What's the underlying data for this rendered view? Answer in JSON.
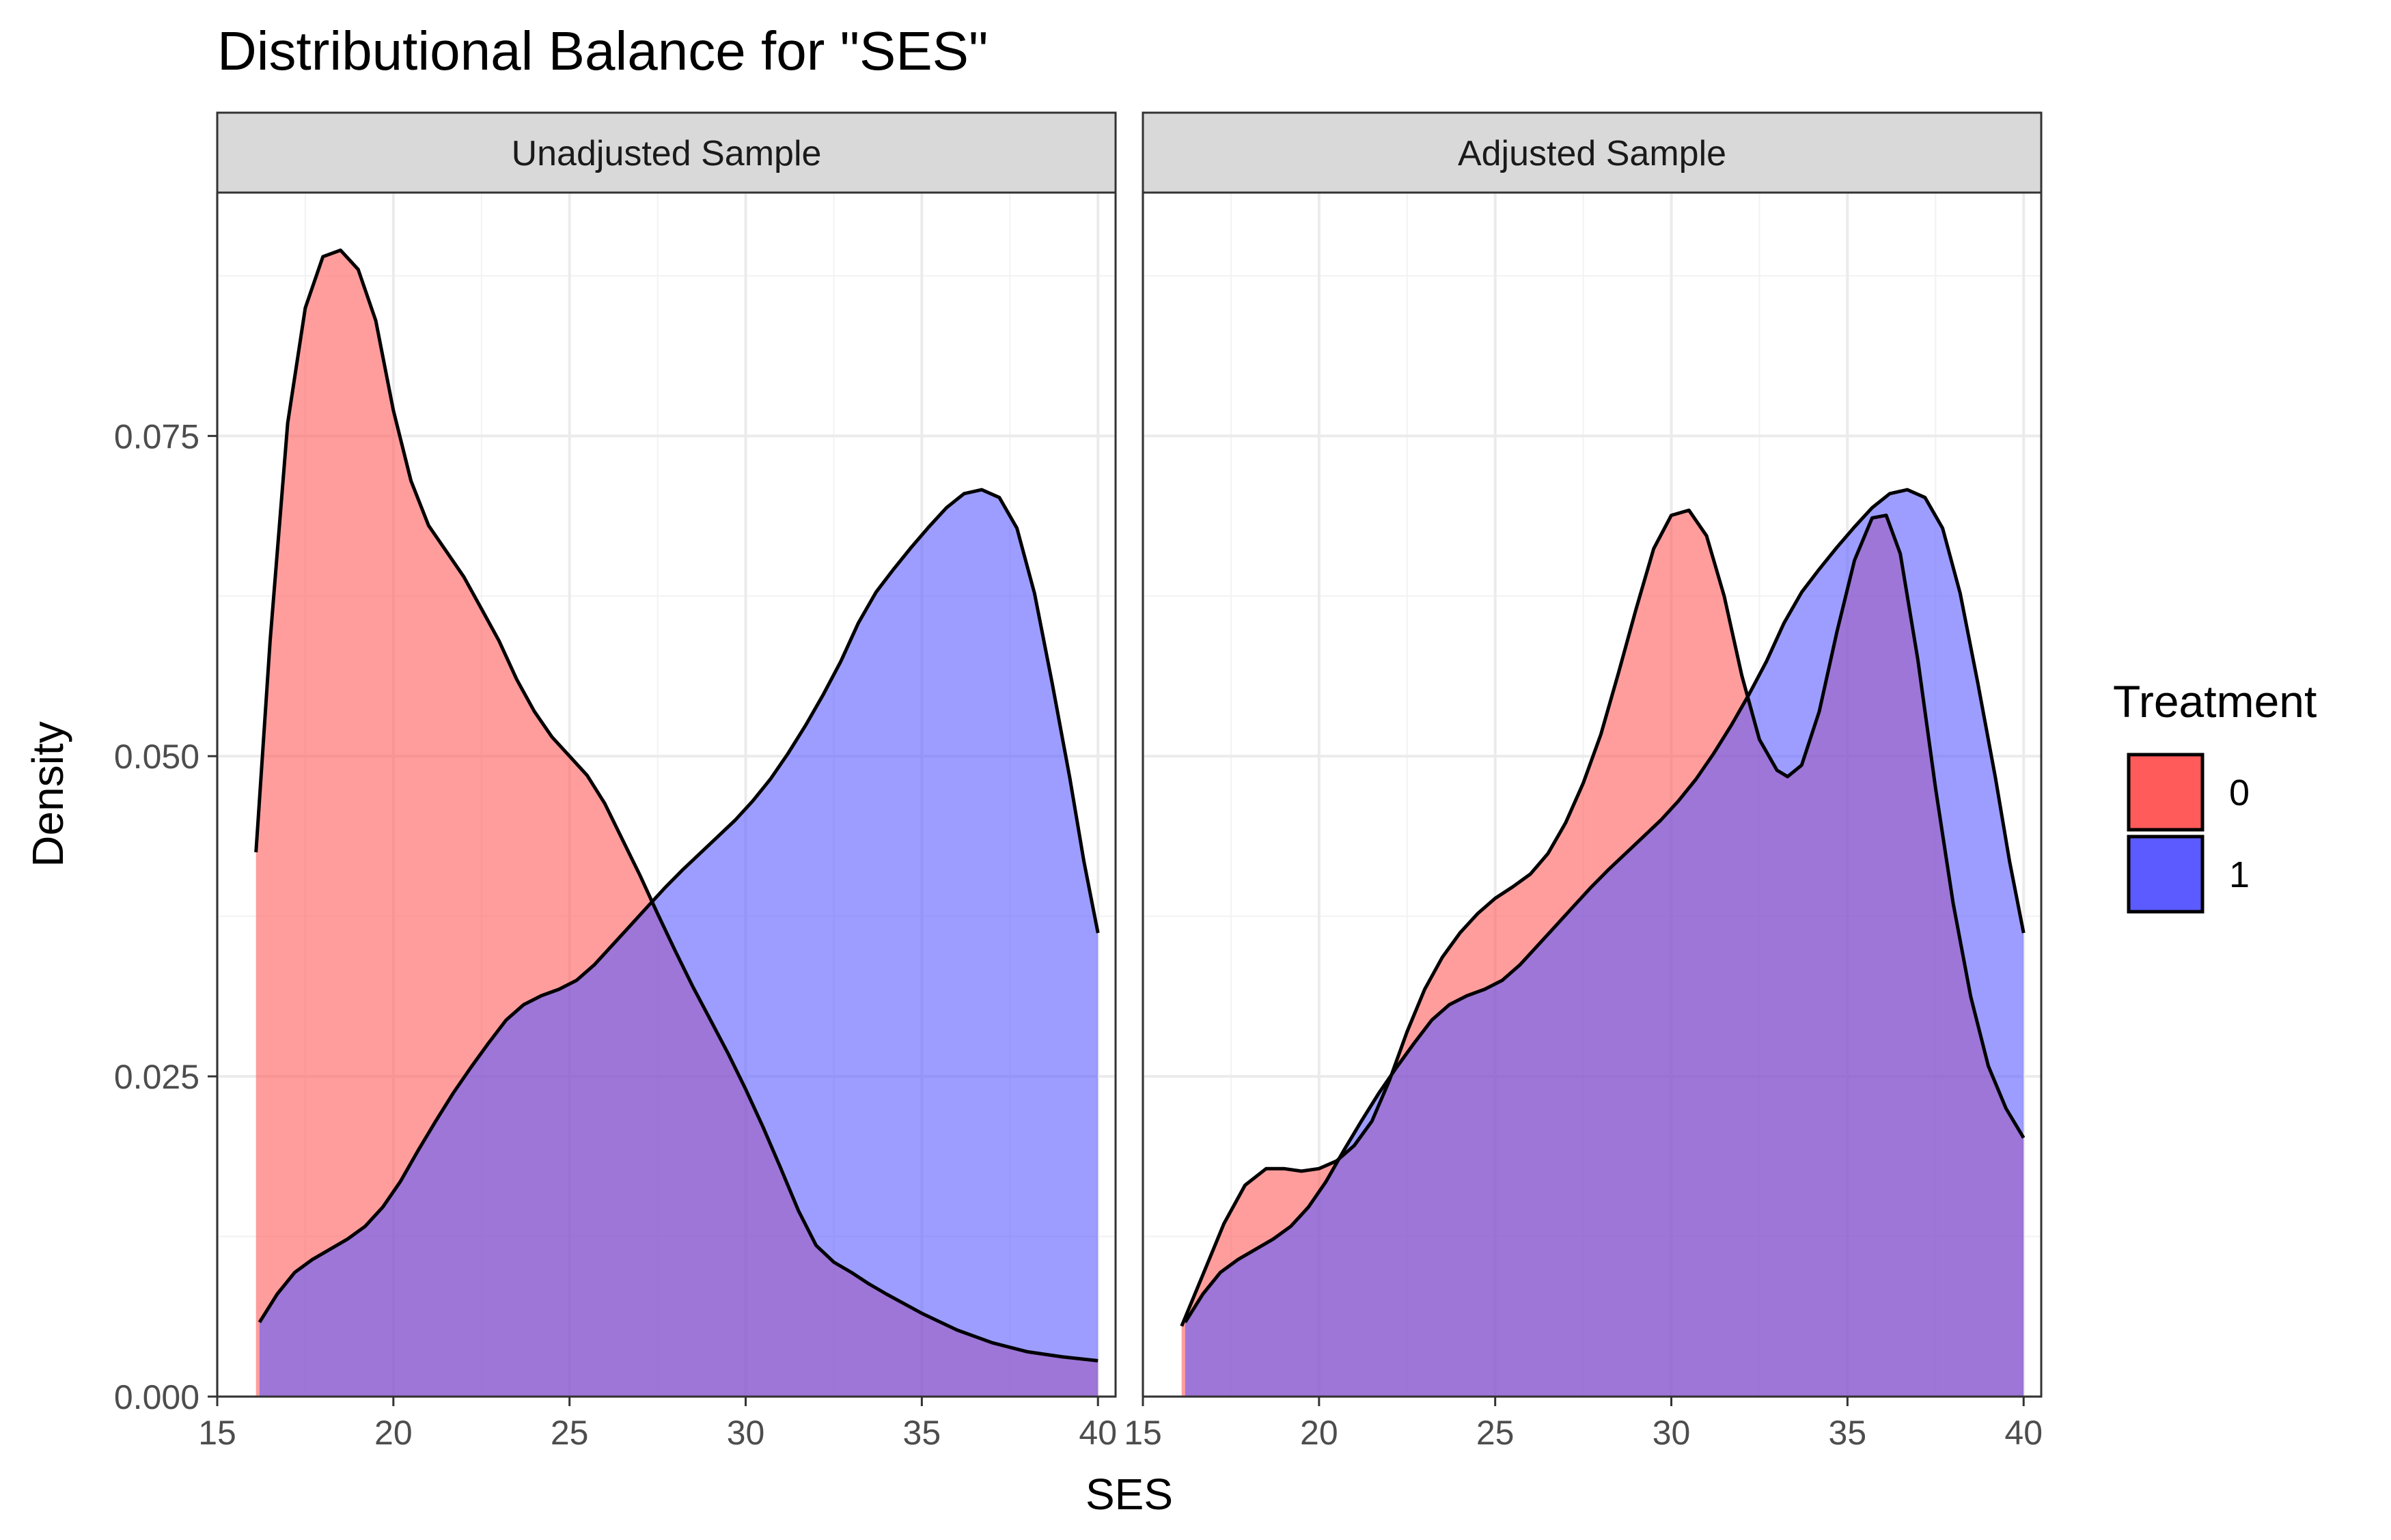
{
  "chart_data": {
    "type": "area",
    "title": "Distributional Balance for \"SES\"",
    "xlabel": "SES",
    "ylabel": "Density",
    "xlim": [
      15,
      40.5
    ],
    "ylim": [
      0,
      0.094
    ],
    "x_ticks": [
      15,
      20,
      25,
      30,
      35,
      40
    ],
    "x_tick_labels": [
      "15",
      "20",
      "25",
      "30",
      "35",
      "40"
    ],
    "y_ticks": [
      0,
      0.025,
      0.05,
      0.075
    ],
    "y_tick_labels": [
      "0.000",
      "0.025",
      "0.050",
      "0.075"
    ],
    "grid": true,
    "legend": {
      "title": "Treatment",
      "position": "right",
      "items": [
        {
          "label": "0",
          "color": "#ff5b5b"
        },
        {
          "label": "1",
          "color": "#5b5bff"
        }
      ]
    },
    "series_colors": {
      "0": "#ff5b5b",
      "1": "#5b5bff"
    },
    "panels": [
      {
        "strip": "Unadjusted Sample",
        "series": [
          {
            "name": "0",
            "points": [
              [
                16.1,
                0.0425
              ],
              [
                16.5,
                0.059
              ],
              [
                17.0,
                0.076
              ],
              [
                17.5,
                0.085
              ],
              [
                18.0,
                0.089
              ],
              [
                18.5,
                0.0895
              ],
              [
                19.0,
                0.088
              ],
              [
                19.5,
                0.084
              ],
              [
                20.0,
                0.077
              ],
              [
                20.5,
                0.0715
              ],
              [
                21.0,
                0.068
              ],
              [
                21.5,
                0.066
              ],
              [
                22.0,
                0.064
              ],
              [
                22.5,
                0.0615
              ],
              [
                23.0,
                0.059
              ],
              [
                23.5,
                0.056
              ],
              [
                24.0,
                0.0535
              ],
              [
                24.5,
                0.0515
              ],
              [
                25.0,
                0.05
              ],
              [
                25.5,
                0.0485
              ],
              [
                26.0,
                0.0463
              ],
              [
                26.5,
                0.0435
              ],
              [
                27.0,
                0.0407
              ],
              [
                27.5,
                0.0377
              ],
              [
                28.0,
                0.0348
              ],
              [
                28.5,
                0.032
              ],
              [
                29.0,
                0.0294
              ],
              [
                29.5,
                0.0268
              ],
              [
                30.0,
                0.024
              ],
              [
                30.5,
                0.021
              ],
              [
                31.0,
                0.0178
              ],
              [
                31.5,
                0.0145
              ],
              [
                32.0,
                0.0118
              ],
              [
                32.5,
                0.0105
              ],
              [
                33.0,
                0.0097
              ],
              [
                33.5,
                0.0088
              ],
              [
                34.0,
                0.008
              ],
              [
                35.0,
                0.0065
              ],
              [
                36.0,
                0.0052
              ],
              [
                37.0,
                0.0042
              ],
              [
                38.0,
                0.0035
              ],
              [
                39.0,
                0.0031
              ],
              [
                40.0,
                0.0028
              ]
            ]
          },
          {
            "name": "1",
            "points": [
              [
                16.2,
                0.0058
              ],
              [
                16.7,
                0.008
              ],
              [
                17.2,
                0.0097
              ],
              [
                17.7,
                0.0107
              ],
              [
                18.2,
                0.0115
              ],
              [
                18.7,
                0.0123
              ],
              [
                19.2,
                0.0133
              ],
              [
                19.7,
                0.0148
              ],
              [
                20.2,
                0.0168
              ],
              [
                20.7,
                0.0192
              ],
              [
                21.2,
                0.0215
              ],
              [
                21.7,
                0.0237
              ],
              [
                22.2,
                0.0257
              ],
              [
                22.7,
                0.0276
              ],
              [
                23.2,
                0.0294
              ],
              [
                23.7,
                0.0306
              ],
              [
                24.2,
                0.0313
              ],
              [
                24.7,
                0.0318
              ],
              [
                25.2,
                0.0325
              ],
              [
                25.7,
                0.0337
              ],
              [
                26.2,
                0.0352
              ],
              [
                26.7,
                0.0367
              ],
              [
                27.2,
                0.0382
              ],
              [
                27.7,
                0.0397
              ],
              [
                28.2,
                0.0411
              ],
              [
                28.7,
                0.0424
              ],
              [
                29.2,
                0.0437
              ],
              [
                29.7,
                0.045
              ],
              [
                30.2,
                0.0465
              ],
              [
                30.7,
                0.0482
              ],
              [
                31.2,
                0.0502
              ],
              [
                31.7,
                0.0524
              ],
              [
                32.2,
                0.0548
              ],
              [
                32.7,
                0.0574
              ],
              [
                33.2,
                0.0604
              ],
              [
                33.7,
                0.0628
              ],
              [
                34.2,
                0.0646
              ],
              [
                34.7,
                0.0663
              ],
              [
                35.2,
                0.0679
              ],
              [
                35.7,
                0.0694
              ],
              [
                36.2,
                0.0705
              ],
              [
                36.7,
                0.0708
              ],
              [
                37.2,
                0.0702
              ],
              [
                37.7,
                0.0678
              ],
              [
                38.2,
                0.0627
              ],
              [
                38.7,
                0.0557
              ],
              [
                39.2,
                0.0483
              ],
              [
                39.6,
                0.0418
              ],
              [
                40.0,
                0.0362
              ]
            ]
          }
        ]
      },
      {
        "strip": "Adjusted Sample",
        "series": [
          {
            "name": "0",
            "points": [
              [
                16.1,
                0.0055
              ],
              [
                16.7,
                0.0095
              ],
              [
                17.3,
                0.0135
              ],
              [
                17.9,
                0.0165
              ],
              [
                18.5,
                0.0178
              ],
              [
                19.0,
                0.0178
              ],
              [
                19.5,
                0.0176
              ],
              [
                20.0,
                0.0178
              ],
              [
                20.5,
                0.0184
              ],
              [
                21.0,
                0.0196
              ],
              [
                21.5,
                0.0215
              ],
              [
                22.0,
                0.0247
              ],
              [
                22.5,
                0.0285
              ],
              [
                23.0,
                0.0318
              ],
              [
                23.5,
                0.0343
              ],
              [
                24.0,
                0.0362
              ],
              [
                24.5,
                0.0377
              ],
              [
                25.0,
                0.0389
              ],
              [
                25.5,
                0.0398
              ],
              [
                26.0,
                0.0408
              ],
              [
                26.5,
                0.0424
              ],
              [
                27.0,
                0.0448
              ],
              [
                27.5,
                0.0479
              ],
              [
                28.0,
                0.0517
              ],
              [
                28.5,
                0.0565
              ],
              [
                29.0,
                0.0615
              ],
              [
                29.5,
                0.0662
              ],
              [
                30.0,
                0.0688
              ],
              [
                30.5,
                0.0692
              ],
              [
                31.0,
                0.0672
              ],
              [
                31.5,
                0.0625
              ],
              [
                32.0,
                0.0563
              ],
              [
                32.5,
                0.0513
              ],
              [
                33.0,
                0.0489
              ],
              [
                33.3,
                0.0484
              ],
              [
                33.7,
                0.0493
              ],
              [
                34.2,
                0.0535
              ],
              [
                34.7,
                0.0597
              ],
              [
                35.2,
                0.0653
              ],
              [
                35.7,
                0.0686
              ],
              [
                36.1,
                0.0688
              ],
              [
                36.5,
                0.0658
              ],
              [
                37.0,
                0.0575
              ],
              [
                37.5,
                0.0475
              ],
              [
                38.0,
                0.0385
              ],
              [
                38.5,
                0.0312
              ],
              [
                39.0,
                0.0258
              ],
              [
                39.5,
                0.0225
              ],
              [
                40.0,
                0.0202
              ]
            ]
          },
          {
            "name": "1",
            "points": [
              [
                16.2,
                0.0058
              ],
              [
                16.7,
                0.008
              ],
              [
                17.2,
                0.0097
              ],
              [
                17.7,
                0.0107
              ],
              [
                18.2,
                0.0115
              ],
              [
                18.7,
                0.0123
              ],
              [
                19.2,
                0.0133
              ],
              [
                19.7,
                0.0148
              ],
              [
                20.2,
                0.0168
              ],
              [
                20.7,
                0.0192
              ],
              [
                21.2,
                0.0215
              ],
              [
                21.7,
                0.0237
              ],
              [
                22.2,
                0.0257
              ],
              [
                22.7,
                0.0276
              ],
              [
                23.2,
                0.0294
              ],
              [
                23.7,
                0.0306
              ],
              [
                24.2,
                0.0313
              ],
              [
                24.7,
                0.0318
              ],
              [
                25.2,
                0.0325
              ],
              [
                25.7,
                0.0337
              ],
              [
                26.2,
                0.0352
              ],
              [
                26.7,
                0.0367
              ],
              [
                27.2,
                0.0382
              ],
              [
                27.7,
                0.0397
              ],
              [
                28.2,
                0.0411
              ],
              [
                28.7,
                0.0424
              ],
              [
                29.2,
                0.0437
              ],
              [
                29.7,
                0.045
              ],
              [
                30.2,
                0.0465
              ],
              [
                30.7,
                0.0482
              ],
              [
                31.2,
                0.0502
              ],
              [
                31.7,
                0.0524
              ],
              [
                32.2,
                0.0548
              ],
              [
                32.7,
                0.0574
              ],
              [
                33.2,
                0.0604
              ],
              [
                33.7,
                0.0628
              ],
              [
                34.2,
                0.0646
              ],
              [
                34.7,
                0.0663
              ],
              [
                35.2,
                0.0679
              ],
              [
                35.7,
                0.0694
              ],
              [
                36.2,
                0.0705
              ],
              [
                36.7,
                0.0708
              ],
              [
                37.2,
                0.0702
              ],
              [
                37.7,
                0.0678
              ],
              [
                38.2,
                0.0627
              ],
              [
                38.7,
                0.0557
              ],
              [
                39.2,
                0.0483
              ],
              [
                39.6,
                0.0418
              ],
              [
                40.0,
                0.0362
              ]
            ]
          }
        ]
      }
    ]
  }
}
